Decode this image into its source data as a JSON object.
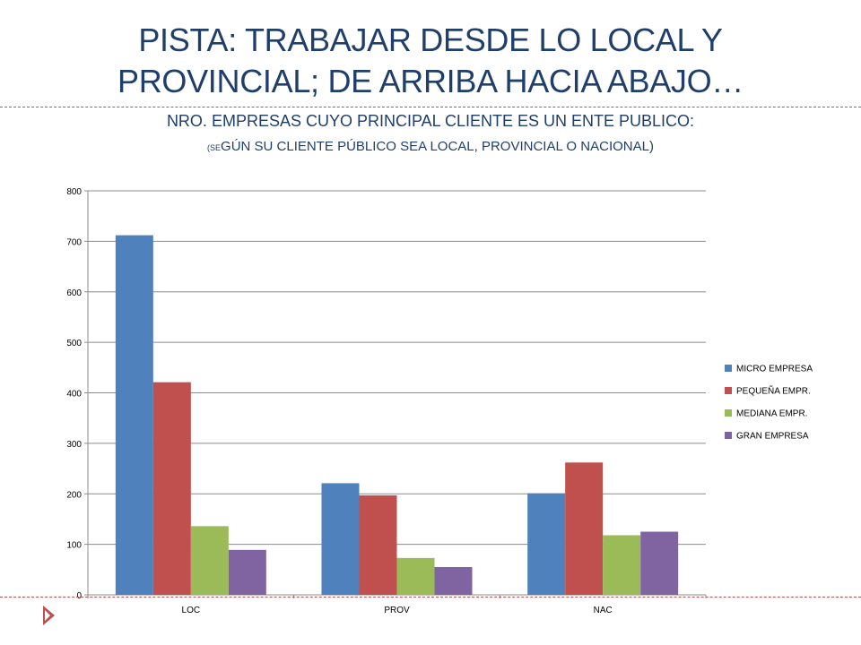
{
  "slide": {
    "title_line1": "PISTA: TRABAJAR DESDE LO LOCAL Y",
    "title_line2": "PROVINCIAL; DE ARRIBA HACIA ABAJO…",
    "subtitle": "NRO. EMPRESAS CUYO PRINCIPAL CLIENTE ES UN ENTE PUBLICO:",
    "subtitle2_open": "(SE",
    "subtitle2_rest": "GÚN SU CLIENTE PÚBLICO SEA LOCAL, PROVINCIAL O NACIONAL)"
  },
  "colors": {
    "title": "#1f3f6a",
    "accent": "#c0504d"
  },
  "chart_data": {
    "type": "bar",
    "categories": [
      "LOC",
      "PROV",
      "NAC"
    ],
    "series": [
      {
        "name": "MICRO EMPRESA",
        "color": "#4f81bd",
        "values": [
          712,
          221,
          201
        ]
      },
      {
        "name": "PEQUEÑA EMPR.",
        "color": "#c0504d",
        "values": [
          421,
          197,
          262
        ]
      },
      {
        "name": "MEDIANA EMPR.",
        "color": "#9bbb59",
        "values": [
          136,
          73,
          118
        ]
      },
      {
        "name": "GRAN EMPRESA",
        "color": "#8064a2",
        "values": [
          89,
          55,
          125
        ]
      }
    ],
    "ylim": [
      0,
      800
    ],
    "yticks": [
      0,
      100,
      200,
      300,
      400,
      500,
      600,
      700,
      800
    ],
    "grid": true,
    "legend": "right"
  }
}
